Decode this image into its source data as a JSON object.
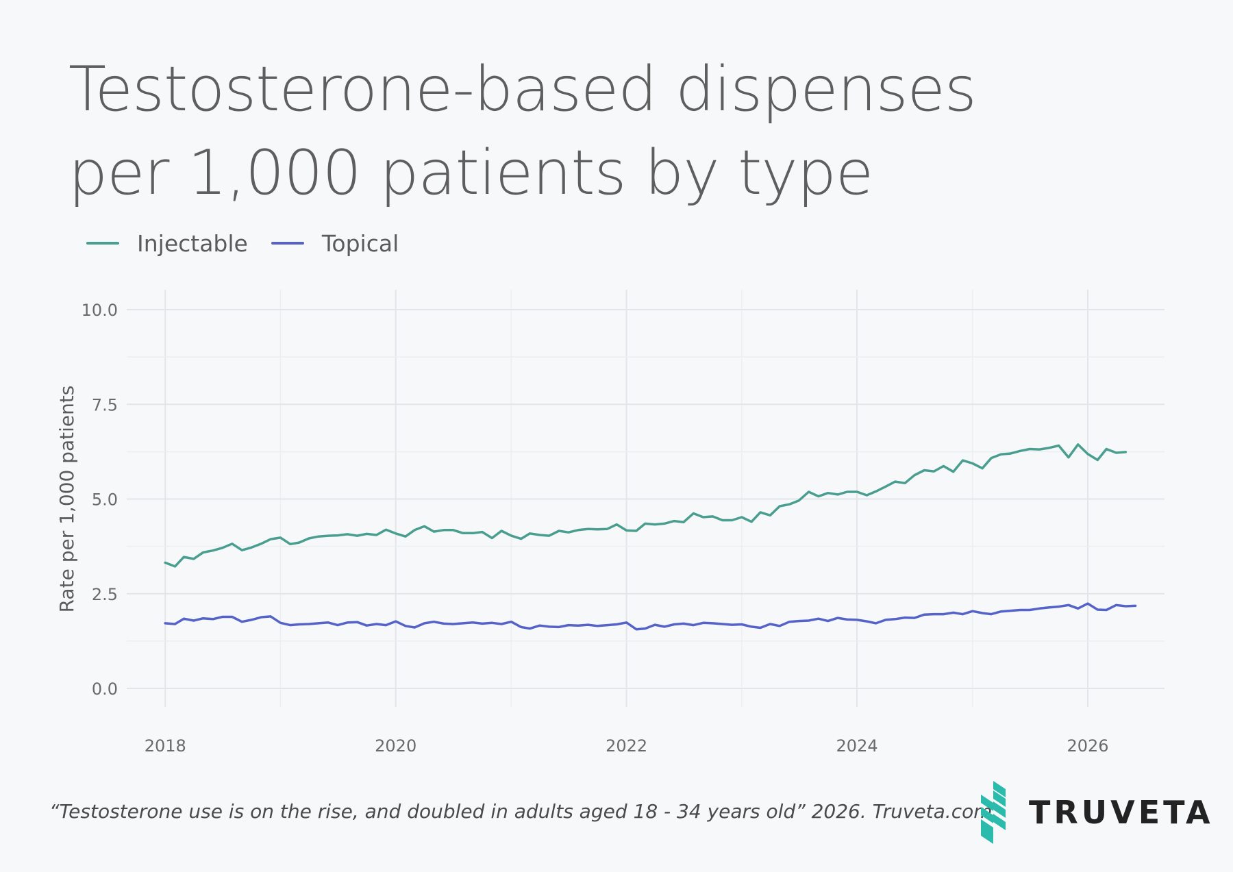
{
  "title_line1": "Testosterone-based dispenses",
  "title_line2": "per 1,000 patients by type",
  "footer": {
    "citation": "“Testosterone use is on the rise, and doubled in adults aged 18 - 34 years old” 2026. Truveta.com.",
    "brand_name": "TRUVETA",
    "brand_icon": "truveta-logo-icon",
    "brand_color": "#2bbbad"
  },
  "chart_data": {
    "type": "line",
    "title": "Testosterone-based dispenses per 1,000 patients by type",
    "xlabel": "",
    "ylabel": "Rate per 1,000 patients",
    "xlim": [
      "2017-09-01",
      "2026-09-01"
    ],
    "ylim": [
      0,
      10
    ],
    "x_ticks": [
      "2018",
      "2020",
      "2022",
      "2024",
      "2026"
    ],
    "y_ticks": [
      "0.0",
      "2.5",
      "5.0",
      "7.5",
      "10.0"
    ],
    "grid": true,
    "legend_position": "top-left",
    "series": [
      {
        "name": "Injectable",
        "color": "#4a9e8f",
        "start": "2018-01",
        "values": [
          3.32,
          3.22,
          3.47,
          3.42,
          3.59,
          3.64,
          3.71,
          3.82,
          3.65,
          3.72,
          3.82,
          3.94,
          3.98,
          3.81,
          3.85,
          3.96,
          4.01,
          4.03,
          4.04,
          4.07,
          4.03,
          4.08,
          4.05,
          4.19,
          4.09,
          4.01,
          4.18,
          4.28,
          4.14,
          4.18,
          4.18,
          4.1,
          4.1,
          4.13,
          3.97,
          4.16,
          4.03,
          3.95,
          4.09,
          4.05,
          4.03,
          4.16,
          4.12,
          4.18,
          4.21,
          4.2,
          4.21,
          4.33,
          4.17,
          4.16,
          4.35,
          4.33,
          4.35,
          4.42,
          4.39,
          4.62,
          4.52,
          4.54,
          4.44,
          4.44,
          4.52,
          4.4,
          4.65,
          4.57,
          4.81,
          4.86,
          4.96,
          5.19,
          5.07,
          5.16,
          5.12,
          5.19,
          5.19,
          5.1,
          5.2,
          5.33,
          5.46,
          5.42,
          5.63,
          5.76,
          5.73,
          5.87,
          5.72,
          6.02,
          5.94,
          5.81,
          6.08,
          6.18,
          6.2,
          6.27,
          6.32,
          6.31,
          6.35,
          6.41,
          6.1,
          6.44,
          6.19,
          6.03,
          6.32,
          6.22,
          6.24
        ]
      },
      {
        "name": "Topical",
        "color": "#5563c8",
        "start": "2018-01",
        "values": [
          1.72,
          1.7,
          1.84,
          1.79,
          1.85,
          1.83,
          1.89,
          1.89,
          1.76,
          1.81,
          1.88,
          1.9,
          1.73,
          1.67,
          1.69,
          1.7,
          1.72,
          1.74,
          1.67,
          1.74,
          1.75,
          1.66,
          1.7,
          1.67,
          1.77,
          1.65,
          1.61,
          1.72,
          1.76,
          1.71,
          1.7,
          1.72,
          1.74,
          1.71,
          1.73,
          1.7,
          1.76,
          1.62,
          1.58,
          1.66,
          1.63,
          1.62,
          1.67,
          1.66,
          1.68,
          1.65,
          1.67,
          1.69,
          1.74,
          1.56,
          1.58,
          1.68,
          1.63,
          1.69,
          1.71,
          1.67,
          1.73,
          1.72,
          1.7,
          1.68,
          1.69,
          1.63,
          1.6,
          1.7,
          1.65,
          1.76,
          1.78,
          1.79,
          1.84,
          1.78,
          1.86,
          1.82,
          1.81,
          1.77,
          1.72,
          1.81,
          1.83,
          1.87,
          1.86,
          1.95,
          1.96,
          1.96,
          2.0,
          1.96,
          2.04,
          1.99,
          1.96,
          2.03,
          2.05,
          2.07,
          2.07,
          2.11,
          2.14,
          2.16,
          2.2,
          2.11,
          2.24,
          2.08,
          2.07,
          2.2,
          2.17,
          2.18
        ]
      }
    ]
  }
}
